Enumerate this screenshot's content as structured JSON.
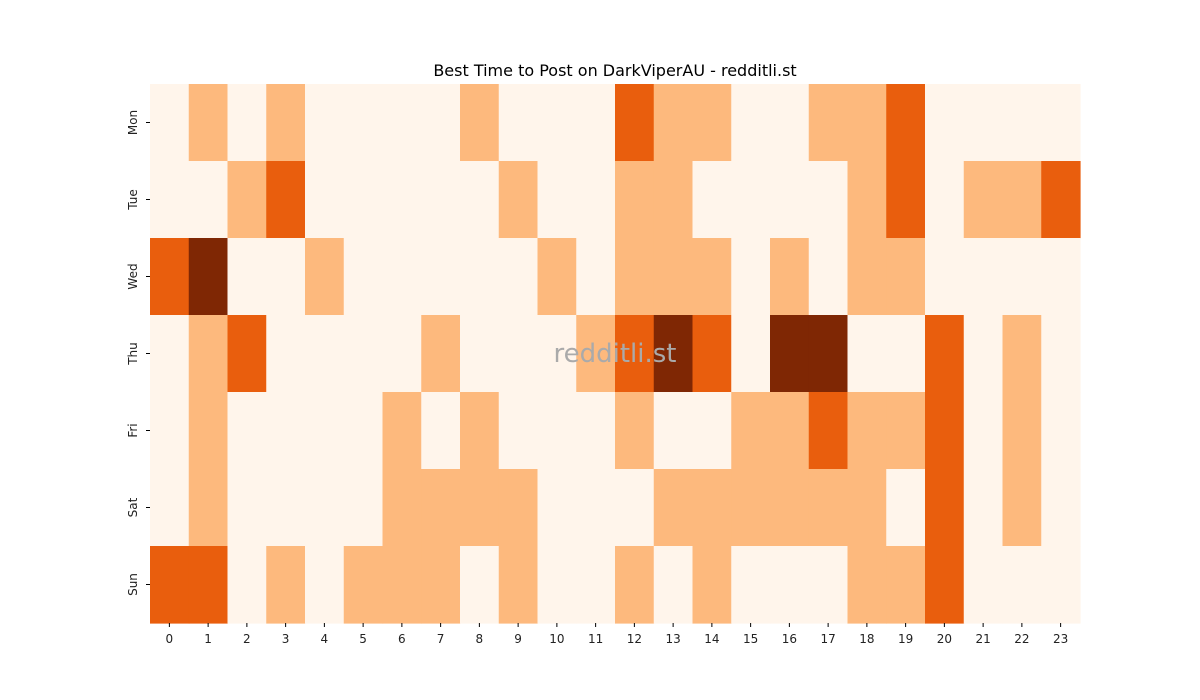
{
  "chart_data": {
    "type": "heatmap",
    "title": "Best Time to Post on DarkViperAU - redditli.st",
    "xlabel": "",
    "ylabel": "",
    "x_categories": [
      "0",
      "1",
      "2",
      "3",
      "4",
      "5",
      "6",
      "7",
      "8",
      "9",
      "10",
      "11",
      "12",
      "13",
      "14",
      "15",
      "16",
      "17",
      "18",
      "19",
      "20",
      "21",
      "22",
      "23"
    ],
    "y_categories": [
      "Mon",
      "Tue",
      "Wed",
      "Thu",
      "Fri",
      "Sat",
      "Sun"
    ],
    "values": [
      [
        0,
        1,
        0,
        1,
        0,
        0,
        0,
        0,
        1,
        0,
        0,
        0,
        2,
        1,
        1,
        0,
        0,
        1,
        1,
        2,
        0,
        0,
        0,
        0
      ],
      [
        0,
        0,
        1,
        2,
        0,
        0,
        0,
        0,
        0,
        1,
        0,
        0,
        1,
        1,
        0,
        0,
        0,
        0,
        1,
        2,
        0,
        1,
        1,
        2
      ],
      [
        2,
        3,
        0,
        0,
        1,
        0,
        0,
        0,
        0,
        0,
        1,
        0,
        1,
        1,
        1,
        0,
        1,
        0,
        1,
        1,
        0,
        0,
        0,
        0
      ],
      [
        0,
        1,
        2,
        0,
        0,
        0,
        0,
        1,
        0,
        0,
        0,
        1,
        2,
        3,
        2,
        0,
        3,
        3,
        0,
        0,
        2,
        0,
        1,
        0
      ],
      [
        0,
        1,
        0,
        0,
        0,
        0,
        1,
        0,
        1,
        0,
        0,
        0,
        1,
        0,
        0,
        1,
        1,
        2,
        1,
        1,
        2,
        0,
        1,
        0
      ],
      [
        0,
        1,
        0,
        0,
        0,
        0,
        1,
        1,
        1,
        1,
        0,
        0,
        0,
        1,
        1,
        1,
        1,
        1,
        1,
        0,
        2,
        0,
        1,
        0
      ],
      [
        2,
        2,
        0,
        1,
        0,
        1,
        1,
        1,
        0,
        1,
        0,
        0,
        1,
        0,
        1,
        0,
        0,
        0,
        1,
        1,
        2,
        0,
        0,
        0
      ]
    ],
    "colorscale": [
      "#fff5eb",
      "#fdb97d",
      "#e95e0d",
      "#7f2704"
    ],
    "watermark": "redditli.st"
  }
}
